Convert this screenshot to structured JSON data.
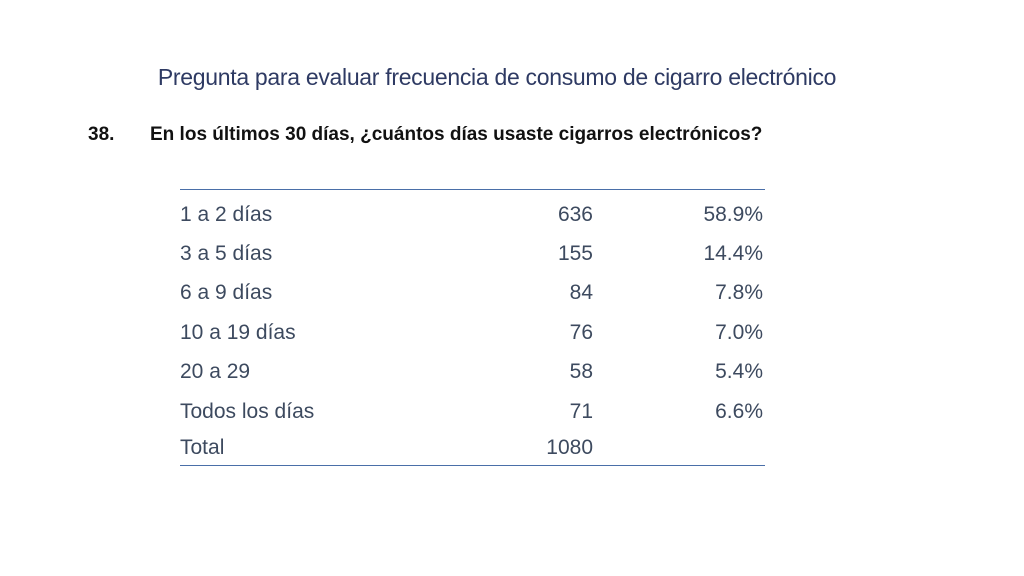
{
  "slide": {
    "title": "Pregunta para evaluar frecuencia de consumo de cigarro electrónico"
  },
  "question": {
    "number": "38.",
    "text": "En los últimos 30 días, ¿cuántos días usaste cigarros electrónicos?"
  },
  "table": {
    "rows": [
      {
        "label": "1 a 2 días",
        "count": "636",
        "percent": "58.9%"
      },
      {
        "label": "3 a 5 días",
        "count": "155",
        "percent": "14.4%"
      },
      {
        "label": "6 a 9 días",
        "count": "84",
        "percent": "7.8%"
      },
      {
        "label": "10 a 19 días",
        "count": "76",
        "percent": "7.0%"
      },
      {
        "label": "20 a 29",
        "count": "58",
        "percent": "5.4%"
      },
      {
        "label": "Todos los días",
        "count": "71",
        "percent": "6.6%"
      },
      {
        "label": "Total",
        "count": "1080",
        "percent": ""
      }
    ]
  }
}
